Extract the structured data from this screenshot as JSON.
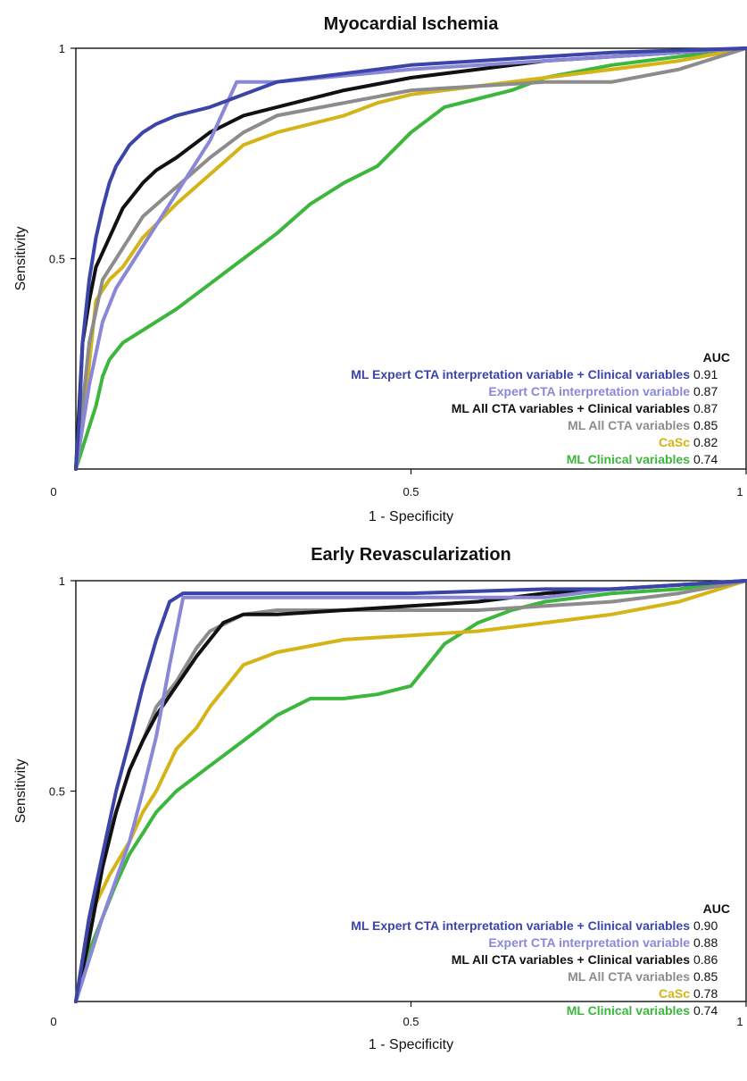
{
  "chart_data": [
    {
      "type": "line",
      "title": "Myocardial Ischemia",
      "xlabel": "1 - Specificity",
      "ylabel": "Sensitivity",
      "xlim": [
        0,
        1
      ],
      "ylim": [
        0,
        1
      ],
      "xticks": [
        "0",
        "0.5",
        "1"
      ],
      "yticks": [
        "0.5",
        "1"
      ],
      "legend_title": "AUC",
      "legend_position": "bottom-right",
      "series": [
        {
          "name": "ML Expert CTA interpretation variable + Clinical variables",
          "auc": "0.91",
          "color": "#3b44a8",
          "x": [
            0,
            0.005,
            0.01,
            0.02,
            0.03,
            0.04,
            0.05,
            0.06,
            0.08,
            0.1,
            0.12,
            0.15,
            0.2,
            0.25,
            0.3,
            0.4,
            0.5,
            0.6,
            0.7,
            0.8,
            0.9,
            1
          ],
          "y": [
            0,
            0.12,
            0.3,
            0.45,
            0.55,
            0.62,
            0.68,
            0.72,
            0.77,
            0.8,
            0.82,
            0.84,
            0.86,
            0.89,
            0.92,
            0.94,
            0.96,
            0.97,
            0.98,
            0.99,
            0.995,
            1
          ]
        },
        {
          "name": "Expert CTA interpretation variable",
          "auc": "0.87",
          "color": "#8a88d6",
          "x": [
            0,
            0.02,
            0.04,
            0.06,
            0.2,
            0.24,
            0.3,
            0.5,
            0.7,
            1
          ],
          "y": [
            0,
            0.2,
            0.35,
            0.43,
            0.78,
            0.92,
            0.92,
            0.95,
            0.97,
            1
          ]
        },
        {
          "name": "ML All CTA variables + Clinical variables",
          "auc": "0.87",
          "color": "#111111",
          "x": [
            0,
            0.005,
            0.01,
            0.02,
            0.03,
            0.05,
            0.07,
            0.1,
            0.12,
            0.15,
            0.2,
            0.25,
            0.3,
            0.4,
            0.5,
            0.6,
            0.7,
            0.8,
            0.9,
            1
          ],
          "y": [
            0,
            0.15,
            0.3,
            0.4,
            0.48,
            0.55,
            0.62,
            0.68,
            0.71,
            0.74,
            0.8,
            0.84,
            0.86,
            0.9,
            0.93,
            0.95,
            0.97,
            0.98,
            0.99,
            1
          ]
        },
        {
          "name": "ML All CTA variables",
          "auc": "0.85",
          "color": "#8c8c8c",
          "x": [
            0,
            0.01,
            0.02,
            0.04,
            0.06,
            0.08,
            0.1,
            0.15,
            0.2,
            0.25,
            0.3,
            0.4,
            0.5,
            0.6,
            0.7,
            0.8,
            0.9,
            1
          ],
          "y": [
            0,
            0.15,
            0.3,
            0.45,
            0.5,
            0.55,
            0.6,
            0.67,
            0.74,
            0.8,
            0.84,
            0.87,
            0.9,
            0.91,
            0.92,
            0.92,
            0.95,
            1
          ]
        },
        {
          "name": "CaSc",
          "auc": "0.82",
          "color": "#d4b416",
          "x": [
            0,
            0.01,
            0.02,
            0.03,
            0.05,
            0.07,
            0.1,
            0.15,
            0.2,
            0.25,
            0.3,
            0.35,
            0.4,
            0.45,
            0.5,
            0.6,
            0.7,
            0.8,
            0.9,
            1
          ],
          "y": [
            0,
            0.1,
            0.25,
            0.4,
            0.45,
            0.48,
            0.55,
            0.63,
            0.7,
            0.77,
            0.8,
            0.82,
            0.84,
            0.87,
            0.89,
            0.91,
            0.93,
            0.95,
            0.97,
            1
          ]
        },
        {
          "name": "ML Clinical variables",
          "auc": "0.74",
          "color": "#3db63d",
          "x": [
            0,
            0.01,
            0.02,
            0.03,
            0.04,
            0.05,
            0.07,
            0.1,
            0.15,
            0.2,
            0.25,
            0.3,
            0.35,
            0.4,
            0.45,
            0.5,
            0.55,
            0.6,
            0.65,
            0.7,
            0.8,
            0.9,
            1
          ],
          "y": [
            0,
            0.05,
            0.1,
            0.15,
            0.22,
            0.26,
            0.3,
            0.33,
            0.38,
            0.44,
            0.5,
            0.56,
            0.63,
            0.68,
            0.72,
            0.8,
            0.86,
            0.88,
            0.9,
            0.93,
            0.96,
            0.98,
            1
          ]
        }
      ]
    },
    {
      "type": "line",
      "title": "Early Revascularization",
      "xlabel": "1 - Specificity",
      "ylabel": "Sensitivity",
      "xlim": [
        0,
        1
      ],
      "ylim": [
        0,
        1
      ],
      "xticks": [
        "0",
        "0.5",
        "1"
      ],
      "yticks": [
        "0.5",
        "1"
      ],
      "legend_title": "AUC",
      "legend_position": "bottom-right",
      "series": [
        {
          "name": "ML Expert CTA interpretation variable + Clinical variables",
          "auc": "0.90",
          "color": "#3b44a8",
          "x": [
            0,
            0.02,
            0.04,
            0.06,
            0.08,
            0.1,
            0.12,
            0.14,
            0.16,
            0.2,
            0.3,
            0.5,
            0.7,
            0.8,
            0.9,
            1
          ],
          "y": [
            0,
            0.2,
            0.35,
            0.5,
            0.62,
            0.75,
            0.86,
            0.95,
            0.97,
            0.97,
            0.97,
            0.97,
            0.98,
            0.98,
            0.99,
            1
          ]
        },
        {
          "name": "Expert CTA interpretation variable",
          "auc": "0.88",
          "color": "#8a88d6",
          "x": [
            0,
            0.04,
            0.08,
            0.1,
            0.12,
            0.14,
            0.16,
            0.3,
            0.5,
            0.7,
            0.8,
            1
          ],
          "y": [
            0,
            0.2,
            0.38,
            0.5,
            0.63,
            0.8,
            0.96,
            0.96,
            0.96,
            0.96,
            0.98,
            1
          ]
        },
        {
          "name": "ML All CTA variables + Clinical variables",
          "auc": "0.86",
          "color": "#111111",
          "x": [
            0,
            0.02,
            0.04,
            0.06,
            0.08,
            0.1,
            0.12,
            0.15,
            0.18,
            0.2,
            0.22,
            0.25,
            0.3,
            0.4,
            0.5,
            0.6,
            0.7,
            0.8,
            0.9,
            1
          ],
          "y": [
            0,
            0.15,
            0.32,
            0.45,
            0.55,
            0.62,
            0.68,
            0.75,
            0.82,
            0.86,
            0.9,
            0.92,
            0.92,
            0.93,
            0.94,
            0.95,
            0.97,
            0.98,
            0.99,
            1
          ]
        },
        {
          "name": "ML All CTA variables",
          "auc": "0.85",
          "color": "#8c8c8c",
          "x": [
            0,
            0.02,
            0.05,
            0.08,
            0.1,
            0.12,
            0.15,
            0.18,
            0.2,
            0.25,
            0.3,
            0.4,
            0.5,
            0.6,
            0.7,
            0.8,
            0.9,
            1
          ],
          "y": [
            0,
            0.2,
            0.4,
            0.55,
            0.62,
            0.7,
            0.76,
            0.84,
            0.88,
            0.92,
            0.93,
            0.93,
            0.93,
            0.93,
            0.94,
            0.95,
            0.97,
            1
          ]
        },
        {
          "name": "CaSc",
          "auc": "0.78",
          "color": "#d4b416",
          "x": [
            0,
            0.02,
            0.05,
            0.08,
            0.1,
            0.12,
            0.15,
            0.18,
            0.2,
            0.25,
            0.3,
            0.4,
            0.5,
            0.6,
            0.7,
            0.8,
            0.9,
            1
          ],
          "y": [
            0,
            0.2,
            0.3,
            0.38,
            0.45,
            0.5,
            0.6,
            0.65,
            0.7,
            0.8,
            0.83,
            0.86,
            0.87,
            0.88,
            0.9,
            0.92,
            0.95,
            1
          ]
        },
        {
          "name": "ML Clinical variables",
          "auc": "0.74",
          "color": "#3db63d",
          "x": [
            0,
            0.02,
            0.04,
            0.06,
            0.08,
            0.1,
            0.12,
            0.15,
            0.2,
            0.25,
            0.3,
            0.35,
            0.4,
            0.45,
            0.5,
            0.55,
            0.6,
            0.65,
            0.7,
            0.8,
            0.9,
            1
          ],
          "y": [
            0,
            0.12,
            0.2,
            0.28,
            0.35,
            0.4,
            0.45,
            0.5,
            0.56,
            0.62,
            0.68,
            0.72,
            0.72,
            0.73,
            0.75,
            0.85,
            0.9,
            0.93,
            0.95,
            0.97,
            0.98,
            1
          ]
        }
      ]
    }
  ]
}
